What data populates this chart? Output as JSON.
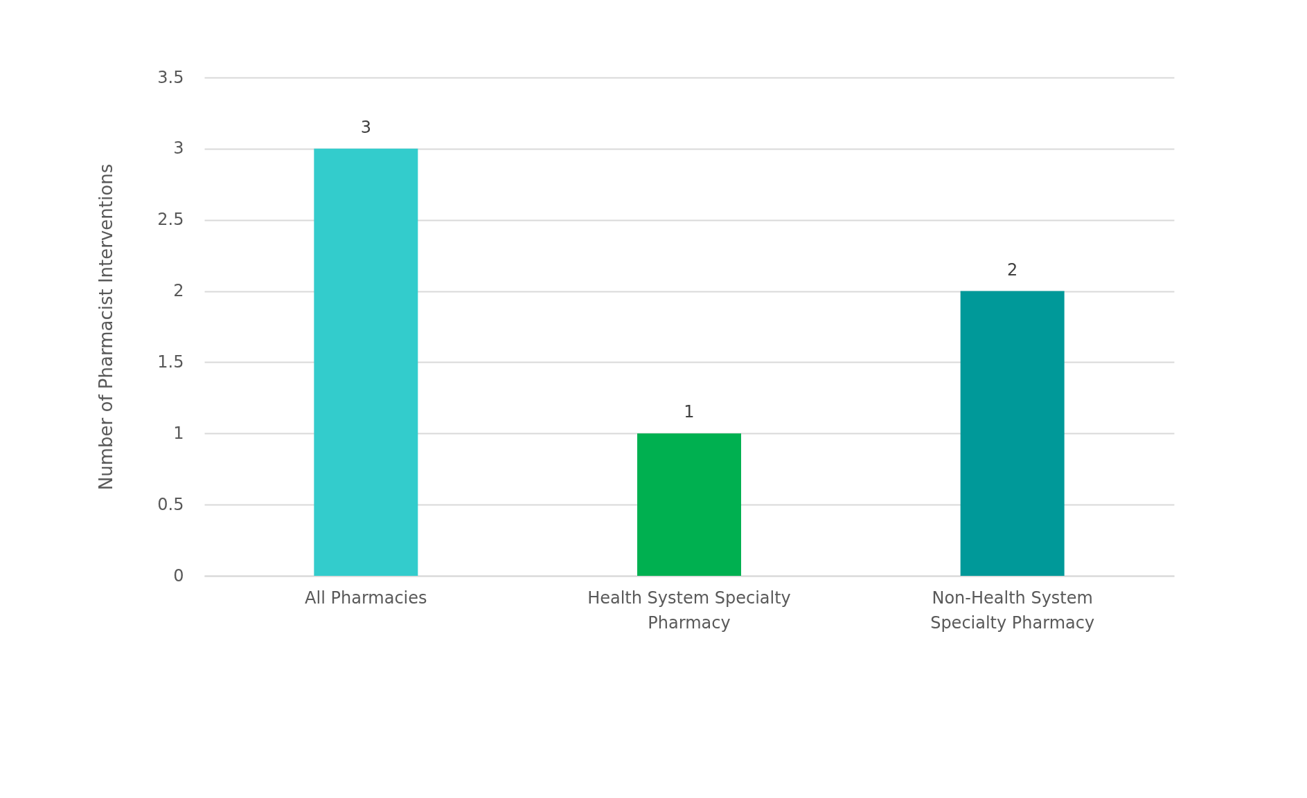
{
  "chart_data": {
    "type": "bar",
    "ylabel": "Number of Pharmacist Interventions",
    "categories": [
      "All Pharmacies",
      "Health System Specialty Pharmacy",
      "Non-Health System Specialty Pharmacy"
    ],
    "values": [
      3,
      1,
      2
    ],
    "colors": [
      "#33cccc",
      "#00b050",
      "#009999"
    ],
    "ylim": [
      0,
      3.5
    ],
    "yticks": [
      0,
      0.5,
      1,
      1.5,
      2,
      2.5,
      3,
      3.5
    ],
    "grid": "y",
    "data_labels": true
  }
}
